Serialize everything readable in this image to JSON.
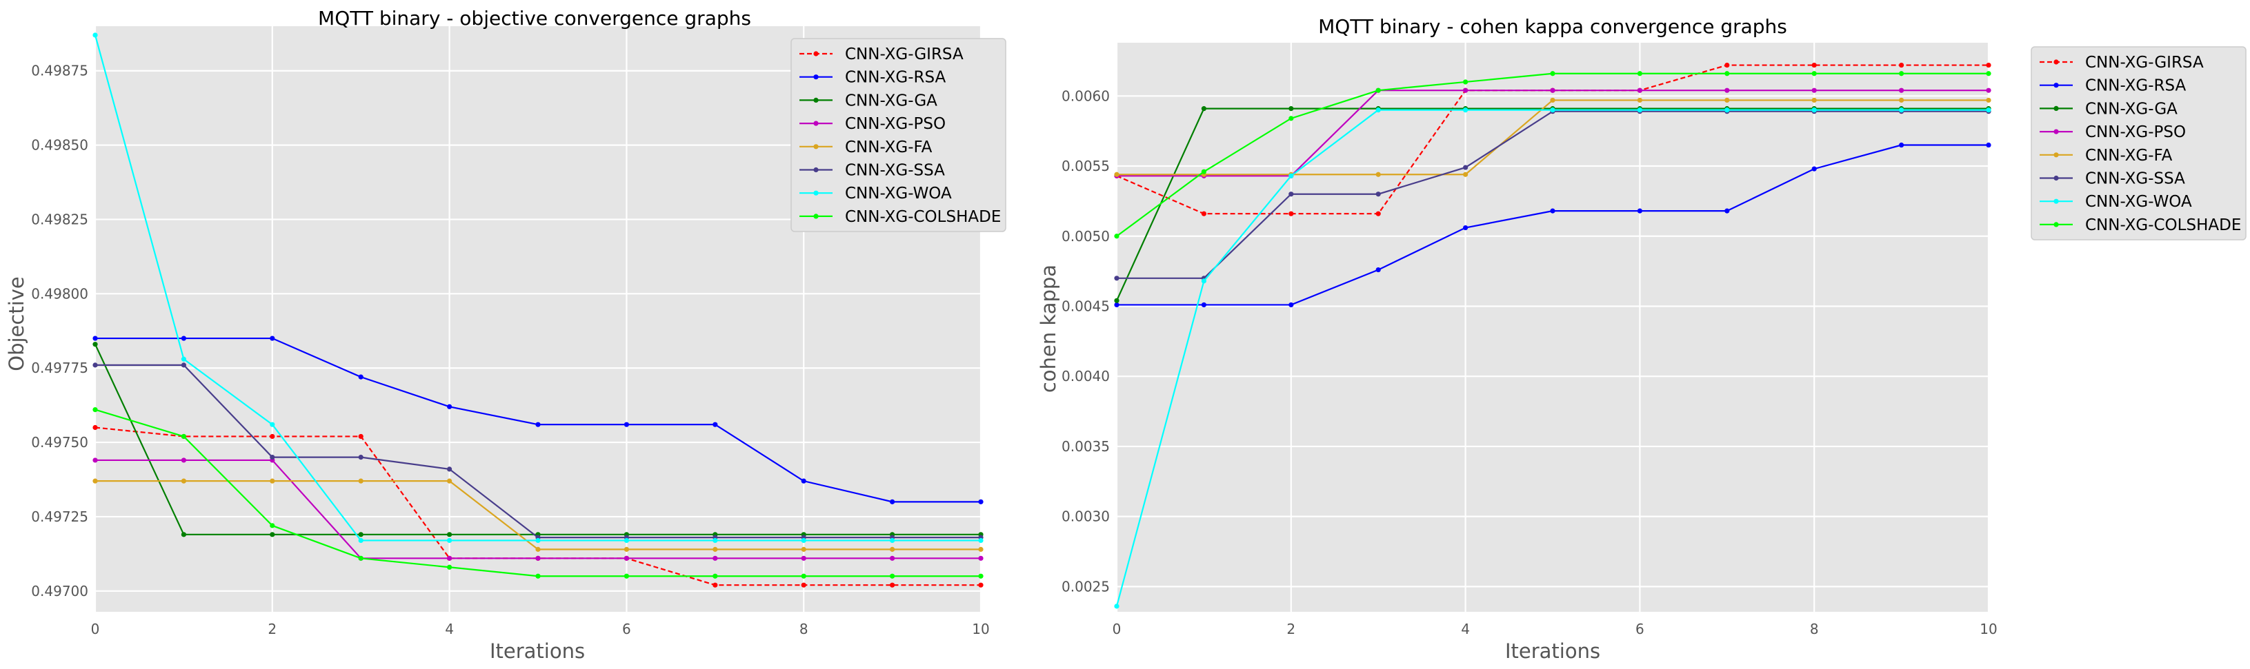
{
  "chart_data": [
    {
      "type": "line",
      "title": "MQTT binary -  objective convergence graphs",
      "xlabel": "Iterations",
      "ylabel": "Objective",
      "xlim": [
        0,
        10
      ],
      "ylim": [
        0.49693,
        0.4989
      ],
      "xticks": [
        0,
        2,
        4,
        6,
        8,
        10
      ],
      "xtick_labels": [
        "0",
        "2",
        "4",
        "6",
        "8",
        "10"
      ],
      "yticks": [
        0.497,
        0.49725,
        0.4975,
        0.49775,
        0.498,
        0.49825,
        0.4985,
        0.49875
      ],
      "ytick_labels": [
        "0.49700",
        "0.49725",
        "0.49750",
        "0.49775",
        "0.49800",
        "0.49825",
        "0.49850",
        "0.49875"
      ],
      "grid": true,
      "legend_position": "top-right",
      "x": [
        0,
        1,
        2,
        3,
        4,
        5,
        6,
        7,
        8,
        9,
        10
      ],
      "series": [
        {
          "name": "CNN-XG-GIRSA",
          "color": "#ff0000",
          "dashed": true,
          "values": [
            0.49755,
            0.49752,
            0.49752,
            0.49752,
            0.49711,
            0.49711,
            0.49711,
            0.49702,
            0.49702,
            0.49702,
            0.49702
          ]
        },
        {
          "name": "CNN-XG-RSA",
          "color": "#0000ff",
          "dashed": false,
          "values": [
            0.49785,
            0.49785,
            0.49785,
            0.49772,
            0.49762,
            0.49756,
            0.49756,
            0.49756,
            0.49737,
            0.4973,
            0.4973
          ]
        },
        {
          "name": "CNN-XG-GA",
          "color": "#007f00",
          "dashed": false,
          "values": [
            0.49783,
            0.49719,
            0.49719,
            0.49719,
            0.49719,
            0.49719,
            0.49719,
            0.49719,
            0.49719,
            0.49719,
            0.49719
          ]
        },
        {
          "name": "CNN-XG-PSO",
          "color": "#bf00bf",
          "dashed": false,
          "values": [
            0.49744,
            0.49744,
            0.49744,
            0.49711,
            0.49711,
            0.49711,
            0.49711,
            0.49711,
            0.49711,
            0.49711,
            0.49711
          ]
        },
        {
          "name": "CNN-XG-FA",
          "color": "#daa520",
          "dashed": false,
          "values": [
            0.49737,
            0.49737,
            0.49737,
            0.49737,
            0.49737,
            0.49714,
            0.49714,
            0.49714,
            0.49714,
            0.49714,
            0.49714
          ]
        },
        {
          "name": "CNN-XG-SSA",
          "color": "#483d8b",
          "dashed": false,
          "values": [
            0.49776,
            0.49776,
            0.49745,
            0.49745,
            0.49741,
            0.49718,
            0.49718,
            0.49718,
            0.49718,
            0.49718,
            0.49718
          ]
        },
        {
          "name": "CNN-XG-WOA",
          "color": "#00ffff",
          "dashed": false,
          "values": [
            0.49887,
            0.49778,
            0.49756,
            0.49717,
            0.49717,
            0.49717,
            0.49717,
            0.49717,
            0.49717,
            0.49717,
            0.49717
          ]
        },
        {
          "name": "CNN-XG-COLSHADE",
          "color": "#00ff00",
          "dashed": false,
          "values": [
            0.49761,
            0.49752,
            0.49722,
            0.49711,
            0.49708,
            0.49705,
            0.49705,
            0.49705,
            0.49705,
            0.49705,
            0.49705
          ]
        }
      ]
    },
    {
      "type": "line",
      "title": "MQTT binary -  cohen kappa convergence graphs",
      "xlabel": "Iterations",
      "ylabel": "cohen kappa",
      "xlim": [
        0,
        10
      ],
      "ylim": [
        0.00232,
        0.00638
      ],
      "xticks": [
        0,
        2,
        4,
        6,
        8,
        10
      ],
      "xtick_labels": [
        "0",
        "2",
        "4",
        "6",
        "8",
        "10"
      ],
      "yticks": [
        0.0025,
        0.003,
        0.0035,
        0.004,
        0.0045,
        0.005,
        0.0055,
        0.006
      ],
      "ytick_labels": [
        "0.0025",
        "0.0030",
        "0.0035",
        "0.0040",
        "0.0045",
        "0.0050",
        "0.0055",
        "0.0060"
      ],
      "grid": true,
      "legend_position": "outside top-right",
      "x": [
        0,
        1,
        2,
        3,
        4,
        5,
        6,
        7,
        8,
        9,
        10
      ],
      "series": [
        {
          "name": "CNN-XG-GIRSA",
          "color": "#ff0000",
          "dashed": true,
          "values": [
            0.00543,
            0.00516,
            0.00516,
            0.00516,
            0.00604,
            0.00604,
            0.00604,
            0.00622,
            0.00622,
            0.00622,
            0.00622
          ]
        },
        {
          "name": "CNN-XG-RSA",
          "color": "#0000ff",
          "dashed": false,
          "values": [
            0.00451,
            0.00451,
            0.00451,
            0.00476,
            0.00506,
            0.00518,
            0.00518,
            0.00518,
            0.00548,
            0.00565,
            0.00565
          ]
        },
        {
          "name": "CNN-XG-GA",
          "color": "#007f00",
          "dashed": false,
          "values": [
            0.00454,
            0.00591,
            0.00591,
            0.00591,
            0.00591,
            0.00591,
            0.00591,
            0.00591,
            0.00591,
            0.00591,
            0.00591
          ]
        },
        {
          "name": "CNN-XG-PSO",
          "color": "#bf00bf",
          "dashed": false,
          "values": [
            0.00543,
            0.00543,
            0.00543,
            0.00604,
            0.00604,
            0.00604,
            0.00604,
            0.00604,
            0.00604,
            0.00604,
            0.00604
          ]
        },
        {
          "name": "CNN-XG-FA",
          "color": "#daa520",
          "dashed": false,
          "values": [
            0.00544,
            0.00544,
            0.00544,
            0.00544,
            0.00544,
            0.00597,
            0.00597,
            0.00597,
            0.00597,
            0.00597,
            0.00597
          ]
        },
        {
          "name": "CNN-XG-SSA",
          "color": "#483d8b",
          "dashed": false,
          "values": [
            0.0047,
            0.0047,
            0.0053,
            0.0053,
            0.00549,
            0.00589,
            0.00589,
            0.00589,
            0.00589,
            0.00589,
            0.00589
          ]
        },
        {
          "name": "CNN-XG-WOA",
          "color": "#00ffff",
          "dashed": false,
          "values": [
            0.00236,
            0.00468,
            0.00543,
            0.0059,
            0.0059,
            0.0059,
            0.0059,
            0.0059,
            0.0059,
            0.0059,
            0.0059
          ]
        },
        {
          "name": "CNN-XG-COLSHADE",
          "color": "#00ff00",
          "dashed": false,
          "values": [
            0.005,
            0.00546,
            0.00584,
            0.00604,
            0.0061,
            0.00616,
            0.00616,
            0.00616,
            0.00616,
            0.00616,
            0.00616
          ]
        }
      ]
    }
  ]
}
